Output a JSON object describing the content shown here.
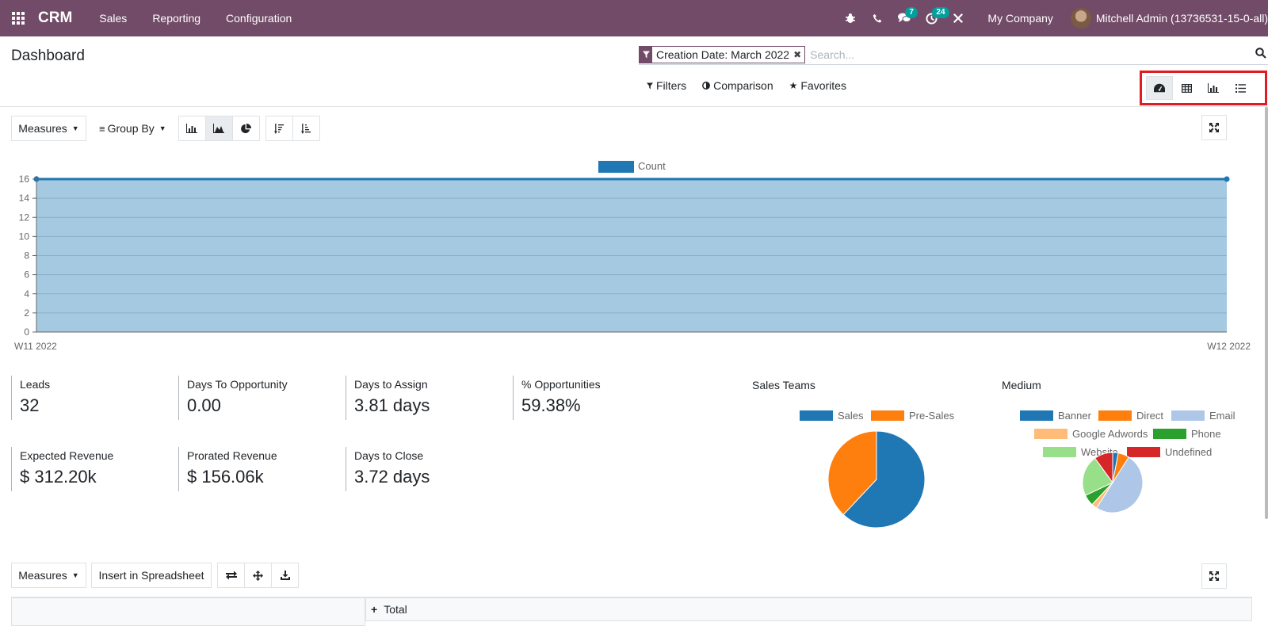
{
  "topbar": {
    "brand": "CRM",
    "menu": [
      "Sales",
      "Reporting",
      "Configuration"
    ],
    "messages_count": "7",
    "activities_count": "24",
    "company": "My Company",
    "user": "Mitchell Admin (13736531-15-0-all)"
  },
  "control_panel": {
    "title": "Dashboard",
    "facet": "Creation Date: March 2022",
    "search_placeholder": "Search...",
    "filters_label": "Filters",
    "comparison_label": "Comparison",
    "favorites_label": "Favorites",
    "views": [
      "dashboard-icon",
      "pivot-icon",
      "graph-icon",
      "list-icon"
    ],
    "active_view": "dashboard"
  },
  "graph_toolbar": {
    "measures_label": "Measures",
    "groupby_label": "Group By",
    "chart_types": [
      "bar",
      "line",
      "pie"
    ],
    "active_chart_type": "line"
  },
  "chart_data": [
    {
      "type": "area",
      "title": "",
      "series": [
        {
          "name": "Count",
          "values": [
            16,
            16
          ],
          "color": "#1f77b4"
        }
      ],
      "categories": [
        "W11 2022",
        "W12 2022"
      ],
      "yticks": [
        0,
        2,
        4,
        6,
        8,
        10,
        12,
        14,
        16
      ],
      "ylim": [
        0,
        16
      ],
      "grid": true,
      "legend": "top-center"
    },
    {
      "type": "pie",
      "title": "Sales Teams",
      "categories": [
        "Sales",
        "Pre-Sales"
      ],
      "values": [
        62,
        38
      ],
      "colors": [
        "#1f77b4",
        "#ff7f0e"
      ],
      "legend": "top-center"
    },
    {
      "type": "pie",
      "title": "Medium",
      "categories": [
        "Banner",
        "Direct",
        "Email",
        "Google Adwords",
        "Phone",
        "Website",
        "Undefined"
      ],
      "values": [
        3,
        6,
        50,
        3,
        6,
        22,
        10
      ],
      "colors": [
        "#1f77b4",
        "#ff7f0e",
        "#aec7e8",
        "#ffbb78",
        "#2ca02c",
        "#98df8a",
        "#d62728"
      ],
      "legend": "top-center"
    }
  ],
  "kpis": [
    {
      "label": "Leads",
      "value": "32"
    },
    {
      "label": "Days To Opportunity",
      "value": "0.00"
    },
    {
      "label": "Days to Assign",
      "value": "3.81 days"
    },
    {
      "label": "% Opportunities",
      "value": "59.38%"
    },
    {
      "label": "Expected Revenue",
      "value": "$ 312.20k"
    },
    {
      "label": "Prorated Revenue",
      "value": "$ 156.06k"
    },
    {
      "label": "Days to Close",
      "value": "3.72 days"
    }
  ],
  "pie_titles": {
    "sales_teams": "Sales Teams",
    "medium": "Medium"
  },
  "pivot": {
    "measures_label": "Measures",
    "insert_label": "Insert in Spreadsheet",
    "header_total": "Total"
  }
}
